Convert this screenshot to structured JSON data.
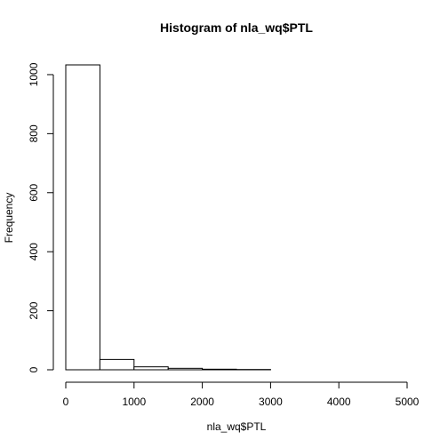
{
  "chart_data": {
    "type": "bar",
    "title": "Histogram of nla_wq$PTL",
    "xlabel": "nla_wq$PTL",
    "ylabel": "Frequency",
    "bin_edges": [
      0,
      500,
      1000,
      1500,
      2000,
      2500,
      3000,
      3500,
      4000,
      4500,
      5000
    ],
    "values": [
      1033,
      35,
      10,
      5,
      2,
      1,
      0,
      0,
      0,
      0
    ],
    "xlim": [
      0,
      5000
    ],
    "ylim": [
      0,
      1033
    ],
    "xticks": [
      0,
      1000,
      2000,
      3000,
      4000,
      5000
    ],
    "yticks": [
      0,
      200,
      400,
      600,
      800,
      1000
    ],
    "grid": false,
    "legend": "none"
  }
}
